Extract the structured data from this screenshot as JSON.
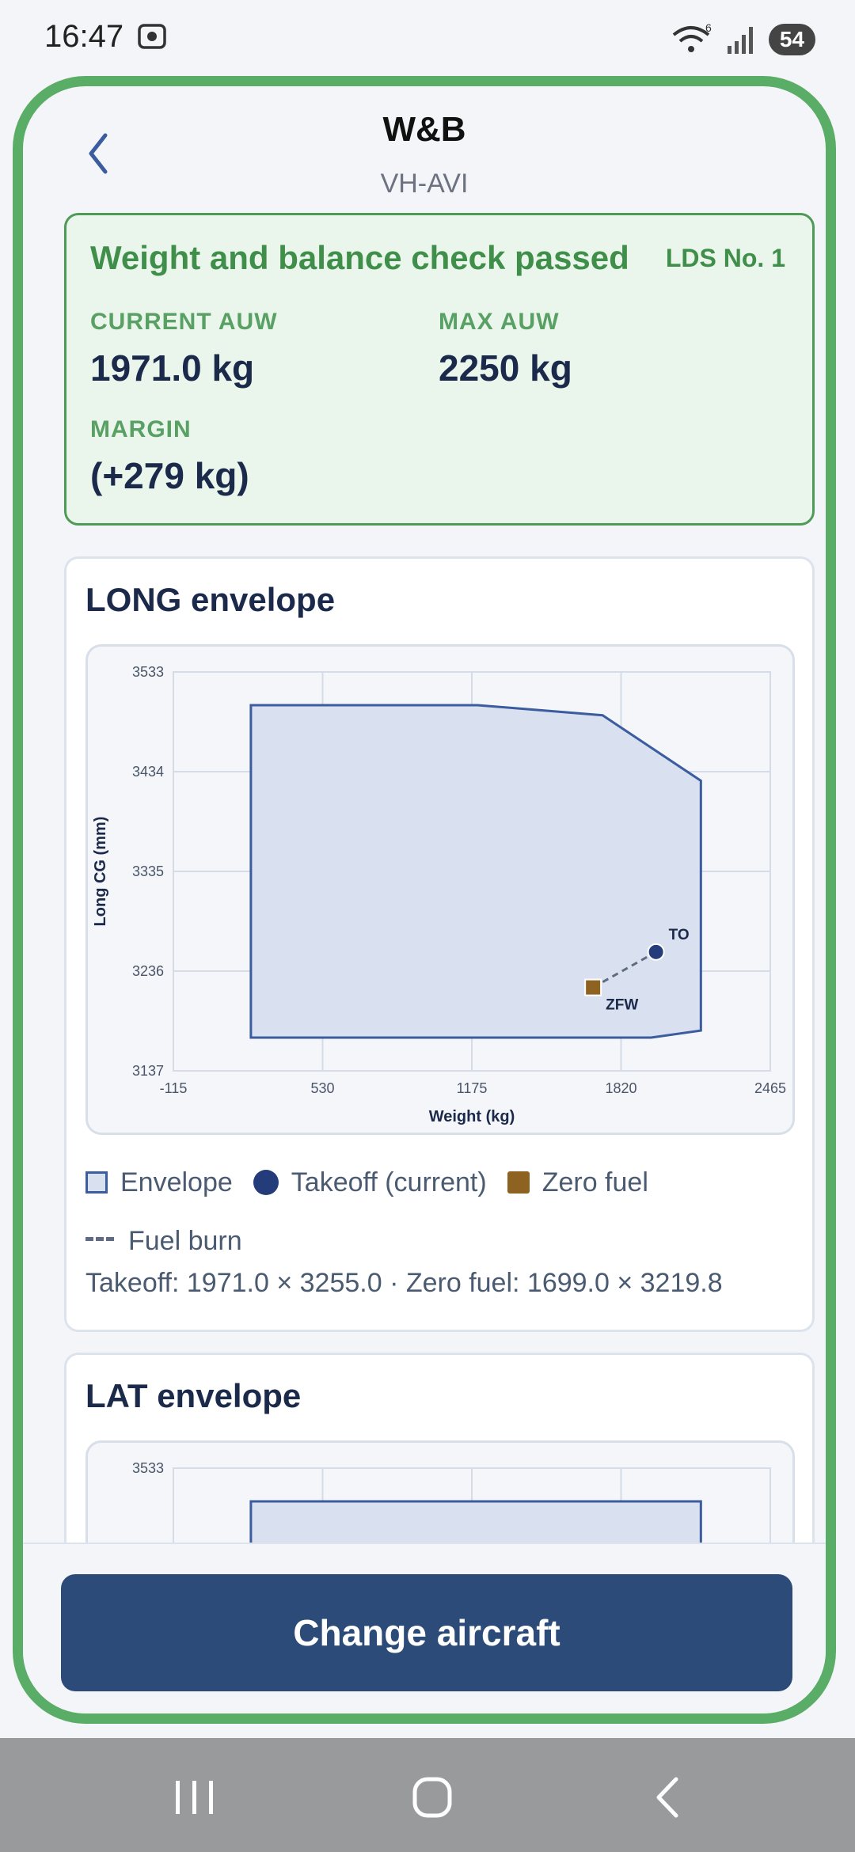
{
  "status_bar": {
    "time": "16:47",
    "wifi_label": "6",
    "battery": "54"
  },
  "header": {
    "title": "W&B",
    "subtitle": "VH-AVI"
  },
  "status": {
    "title": "Weight and balance check passed",
    "lds": "LDS No. 1",
    "current_auw_label": "CURRENT AUW",
    "current_auw": "1971.0 kg",
    "max_auw_label": "MAX AUW",
    "max_auw": "2250 kg",
    "margin_label": "MARGIN",
    "margin": "(+279 kg)"
  },
  "long_card": {
    "title": "LONG envelope",
    "legend": {
      "envelope": "Envelope",
      "takeoff": "Takeoff (current)",
      "zero_fuel": "Zero fuel",
      "fuel_burn": "Fuel burn"
    },
    "summary": "Takeoff: 1971.0 × 3255.0 · Zero fuel: 1699.0 × 3219.8"
  },
  "lat_card": {
    "title": "LAT envelope"
  },
  "bottom": {
    "button": "Change aircraft"
  },
  "colors": {
    "accent": "#5aad67",
    "primary": "#2c4b78",
    "envelope_fill": "#d9e0ef",
    "envelope_stroke": "#3b5c9e",
    "takeoff": "#243c7a",
    "zero_fuel": "#8e6322"
  },
  "chart_data": [
    {
      "type": "scatter",
      "title": "LONG envelope",
      "xlabel": "Weight (kg)",
      "ylabel": "Long CG (mm)",
      "xlim": [
        -115,
        2465
      ],
      "ylim": [
        3137,
        3533
      ],
      "x_ticks": [
        "-115",
        "530",
        "1175",
        "1820",
        "2465"
      ],
      "y_ticks": [
        "3533",
        "3434",
        "3335",
        "3236",
        "3137"
      ],
      "envelope": [
        [
          220,
          3170
        ],
        [
          220,
          3500
        ],
        [
          1200,
          3500
        ],
        [
          1740,
          3490
        ],
        [
          2165,
          3425
        ],
        [
          2165,
          3177
        ],
        [
          1950,
          3170
        ]
      ],
      "points": [
        {
          "name": "Takeoff (current)",
          "label": "TO",
          "x": 1971.0,
          "y": 3255.0
        },
        {
          "name": "Zero fuel",
          "label": "ZFW",
          "x": 1699.0,
          "y": 3219.8
        }
      ],
      "fuel_burn_line": true,
      "grid": true
    },
    {
      "type": "scatter",
      "title": "LAT envelope",
      "ylim_top_visible": "3533",
      "envelope_top_visible": [
        [
          220,
          3500
        ],
        [
          2165,
          3500
        ]
      ],
      "grid": true
    }
  ]
}
